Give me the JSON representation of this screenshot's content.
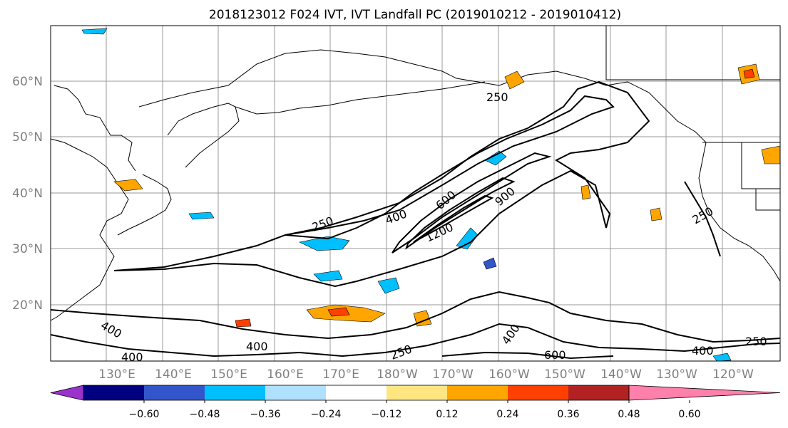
{
  "title": "2018123012 F024 IVT, IVT Landfall PC (2019010212 - 2019010412)",
  "lat_labels": [
    "60°N",
    "50°N",
    "40°N",
    "30°N",
    "20°N"
  ],
  "lon_labels": [
    "130°E",
    "140°E",
    "150°E",
    "160°E",
    "170°E",
    "180°W",
    "170°W",
    "160°W",
    "150°W",
    "140°W",
    "130°W",
    "120°W"
  ],
  "colorbar": {
    "colors": [
      "#9933cc",
      "#000080",
      "#3355cc",
      "#00bfff",
      "#b0e0ff",
      "#ffffff",
      "#ffe680",
      "#ffa500",
      "#ff4000",
      "#b22222",
      "#ff80aa"
    ],
    "tick_labels": [
      "−0.60",
      "−0.48",
      "−0.36",
      "−0.24",
      "−0.12",
      "0.12",
      "0.24",
      "0.36",
      "0.48",
      "0.60"
    ]
  },
  "contour_labels": [
    "250",
    "400",
    "600",
    "900",
    "1200",
    "250",
    "250",
    "400",
    "400",
    "400",
    "400",
    "250",
    "600",
    "400",
    "250",
    "250"
  ],
  "chart_data": {
    "type": "heatmap",
    "title": "2018123012 F024 IVT, IVT Landfall PC (2019010212 - 2019010412)",
    "xlabel": "",
    "ylabel": "",
    "xlim": [
      "130°E",
      "120°W"
    ],
    "ylim": [
      "10°N",
      "70°N"
    ],
    "grid": true,
    "contour_levels": [
      250,
      400,
      600,
      900,
      1200
    ],
    "shading_levels": [
      -0.6,
      -0.48,
      -0.36,
      -0.24,
      -0.12,
      0.12,
      0.24,
      0.36,
      0.48,
      0.6
    ]
  }
}
